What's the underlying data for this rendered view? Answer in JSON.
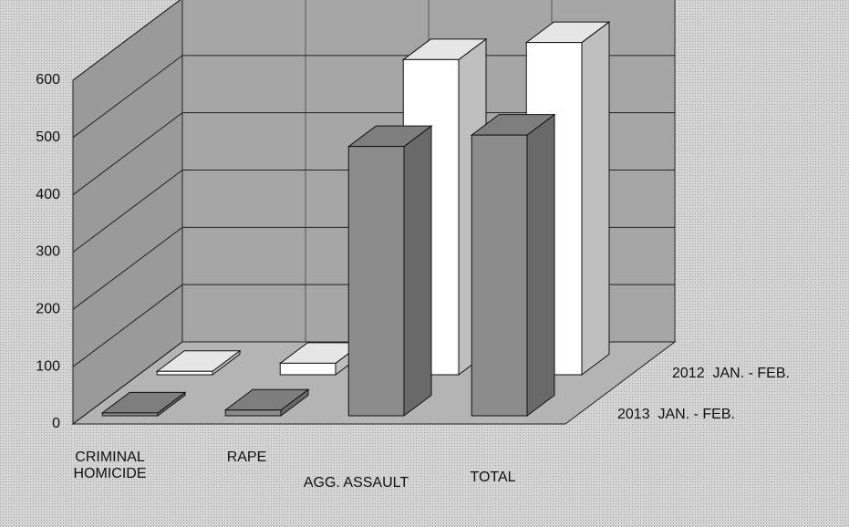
{
  "chart_data": {
    "type": "bar3d",
    "categories": [
      "CRIMINAL HOMICIDE",
      "RAPE",
      "AGG. ASSAULT",
      "TOTAL"
    ],
    "series": [
      {
        "name": "2012  JAN. - FEB.",
        "color": "#ffffff",
        "values": [
          6,
          20,
          550,
          580
        ]
      },
      {
        "name": "2013  JAN. - FEB.",
        "color": "#8c8c8c",
        "values": [
          5,
          10,
          470,
          490
        ]
      }
    ],
    "ylim": [
      0,
      600
    ],
    "yticks": [
      0,
      100,
      200,
      300,
      400,
      500,
      600
    ],
    "grid": true
  }
}
